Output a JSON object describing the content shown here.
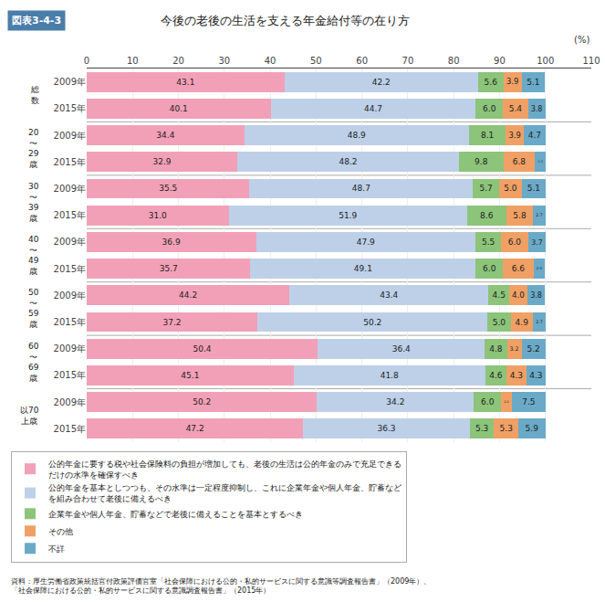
{
  "chart_data": {
    "type": "bar",
    "orientation": "horizontal",
    "stacked": true,
    "data_labels": true,
    "grid": true,
    "legend": "bottom",
    "title": "今後の老後の生活を支える年金給付等の在り方",
    "annotations": [
      "図表3-4-3",
      "(%)",
      "資料：厚生労働省政策統括官付政策評価官室「社会保障における公的・私的サービスに関する意識等調査報告書」（2009年）、\n「社会保障における公的・私的サービスに関する意識調査報告書」（2015年）"
    ],
    "categories": [
      [
        "総\n数",
        "2009年"
      ],
      [
        "総\n数",
        "2015年"
      ],
      [
        "20\n〜\n29\n歳",
        "2009年"
      ],
      [
        "20\n〜\n29\n歳",
        "2015年"
      ],
      [
        "30\n〜\n39\n歳",
        "2009年"
      ],
      [
        "30\n〜\n39\n歳",
        "2015年"
      ],
      [
        "40\n〜\n49\n歳",
        "2009年"
      ],
      [
        "40\n〜\n49\n歳",
        "2015年"
      ],
      [
        "50\n〜\n59\n歳",
        "2009年"
      ],
      [
        "50\n〜\n59\n歳",
        "2015年"
      ],
      [
        "60\n〜\n69\n歳",
        "2009年"
      ],
      [
        "60\n〜\n69\n歳",
        "2015年"
      ],
      [
        "以70\n上歳",
        "2009年"
      ],
      [
        "以70\n上歳",
        "2015年"
      ]
    ],
    "series": [
      {
        "name": "公的年金に要する税や社会保険料の負担が増加しても、老後の生活は公的年金のみで充足できる\nだけの水準を確保すべき",
        "color": "#F2A0B8",
        "values": [
          43.1,
          40.1,
          34.4,
          32.9,
          35.5,
          31.0,
          36.9,
          35.7,
          44.2,
          37.2,
          50.4,
          45.1,
          50.2,
          47.2
        ],
        "value_labels": [
          "43.1",
          "40.1",
          "34.4",
          "32.9",
          "35.5",
          "31.0",
          "36.9",
          "35.7",
          "44.2",
          "37.2",
          "50.4",
          "45.1",
          "50.2",
          "47.2"
        ]
      },
      {
        "name": "公的年金を基本としつつも、その水準は一定程度抑制し、これに企業年金や個人年金、貯蓄など\nを組み合わせて老後に備えるべき",
        "color": "#BDD0E8",
        "values": [
          42.2,
          44.7,
          48.9,
          48.2,
          48.7,
          51.9,
          47.9,
          49.1,
          43.4,
          50.2,
          36.4,
          41.8,
          34.2,
          36.3
        ],
        "value_labels": [
          "42.2",
          "44.7",
          "48.9",
          "48.2",
          "48.7",
          "51.9",
          "47.9",
          "49.1",
          "43.4",
          "50.2",
          "36.4",
          "41.8",
          "34.2",
          "36.3"
        ]
      },
      {
        "name": "企業年金や個人年金、貯蓄などで老後に備えることを基本とするべき",
        "color": "#8CC47A",
        "values": [
          5.6,
          6.0,
          8.1,
          9.8,
          5.7,
          8.6,
          5.5,
          6.0,
          4.5,
          5.0,
          4.8,
          4.6,
          6.0,
          5.3
        ],
        "value_labels": [
          "5.6",
          "6.0",
          "8.1",
          "9.8",
          "5.7",
          "8.6",
          "5.5",
          "6.0",
          "4.5",
          "5.0",
          "4.8",
          "4.6",
          "6.0",
          "5.3"
        ]
      },
      {
        "name": "その他",
        "color": "#F0A064",
        "values": [
          3.9,
          5.4,
          3.9,
          6.8,
          5.0,
          5.8,
          6.0,
          6.6,
          4.0,
          4.9,
          3.2,
          4.3,
          2.2,
          5.3
        ],
        "value_labels": [
          "3.9",
          "5.4",
          "3.9",
          "6.8",
          "5.0",
          "5.8",
          "6.0",
          "6.6",
          "4.0",
          "4.9",
          "3.2",
          "4.3",
          "2.2",
          "5.3"
        ]
      },
      {
        "name": "不詳",
        "color": "#6AAAC8",
        "values": [
          5.1,
          3.8,
          4.7,
          2.3,
          5.1,
          2.7,
          3.7,
          2.5,
          3.8,
          2.7,
          5.2,
          4.3,
          7.5,
          5.9
        ],
        "value_labels": [
          "5.1",
          "3.8",
          "4.7",
          "2.3",
          "5.1",
          "2.7",
          "3.7",
          "2.5",
          "3.8",
          "2.7",
          "5.2",
          "4.3",
          "7.5",
          "5.9"
        ]
      }
    ],
    "xlim": [
      0,
      110
    ],
    "xticks": [
      0,
      10,
      20,
      30,
      40,
      50,
      60,
      70,
      80,
      90,
      100,
      110
    ]
  }
}
